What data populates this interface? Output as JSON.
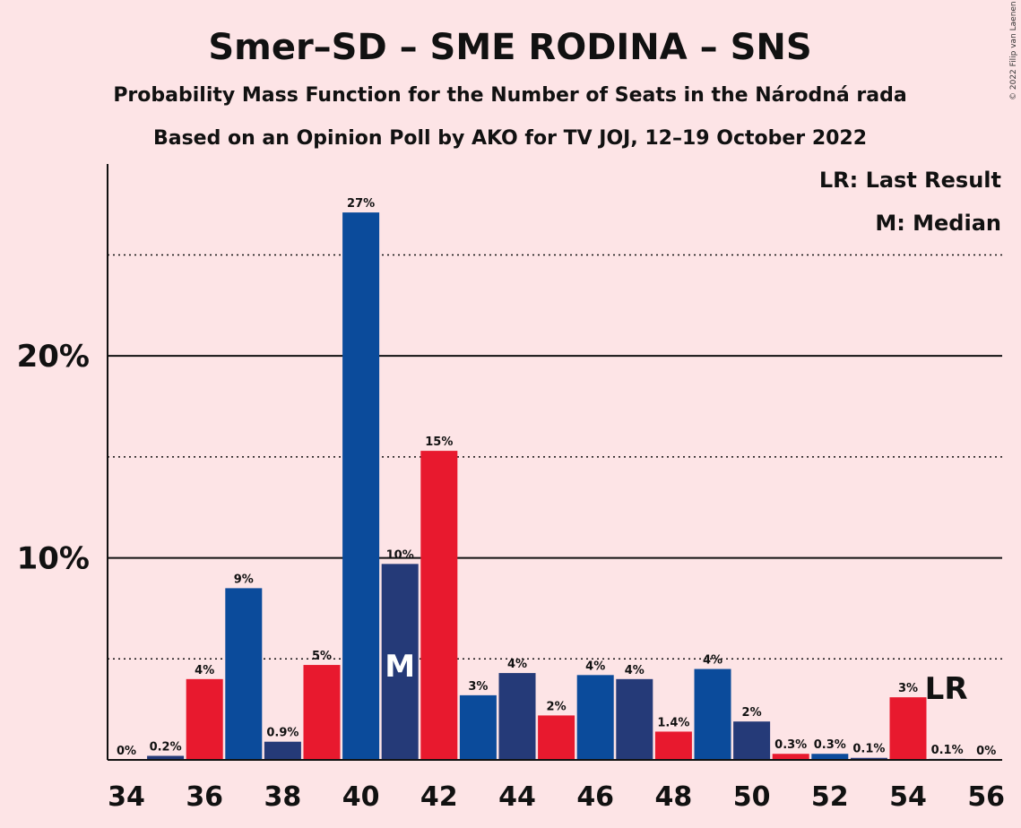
{
  "title": "Smer–SD – SME RODINA – SNS",
  "subtitle1": "Probability Mass Function for the Number of Seats in the Národná rada",
  "subtitle2": "Based on an Opinion Poll by AKO for TV JOJ, 12–19 October 2022",
  "credit": "© 2022 Filip van Laenen",
  "legend": {
    "lr": "LR: Last Result",
    "m": "M: Median"
  },
  "colors": {
    "background": "#fde4e6",
    "blue": "#0b4b9b",
    "navy": "#253a78",
    "red": "#e8192e"
  },
  "chart_data": {
    "type": "bar",
    "x": [
      34,
      35,
      36,
      37,
      38,
      39,
      40,
      41,
      42,
      43,
      44,
      45,
      46,
      47,
      48,
      49,
      50,
      51,
      52,
      53,
      54,
      55,
      56
    ],
    "values": [
      0,
      0.2,
      4.0,
      8.5,
      0.9,
      4.7,
      27.1,
      9.7,
      15.3,
      3.2,
      4.3,
      2.2,
      4.2,
      4.0,
      1.4,
      4.5,
      1.9,
      0.3,
      0.3,
      0.1,
      3.1,
      0.05,
      0
    ],
    "labels": [
      "0%",
      "0.2%",
      "4%",
      "9%",
      "0.9%",
      "5%",
      "27%",
      "10%",
      "15%",
      "3%",
      "4%",
      "2%",
      "4%",
      "4%",
      "1.4%",
      "4%",
      "2%",
      "0.3%",
      "0.3%",
      "0.1%",
      "3%",
      "0.1%",
      "0%"
    ],
    "bar_colors": [
      "blue",
      "navy",
      "red",
      "blue",
      "navy",
      "red",
      "blue",
      "navy",
      "red",
      "blue",
      "navy",
      "red",
      "blue",
      "navy",
      "red",
      "blue",
      "navy",
      "red",
      "blue",
      "navy",
      "red",
      "blue",
      "navy"
    ],
    "x_ticks": [
      34,
      36,
      38,
      40,
      42,
      44,
      46,
      48,
      50,
      52,
      54,
      56
    ],
    "y_ticks": [
      "10%",
      "20%"
    ],
    "y_tick_values": [
      10,
      20
    ],
    "y_dotted_gridlines": [
      5,
      15,
      25
    ],
    "ylim": [
      0,
      29.5
    ],
    "median": 41,
    "median_label": "M",
    "last_result": 55,
    "last_result_label": "LR",
    "xlabel": "",
    "ylabel": ""
  }
}
